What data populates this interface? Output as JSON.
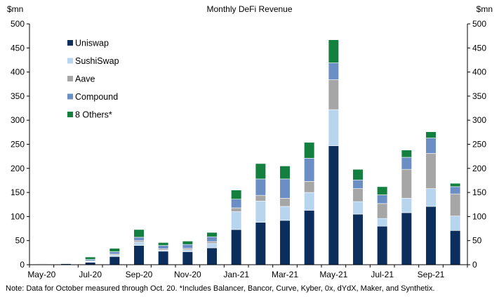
{
  "chart_data": {
    "type": "bar",
    "stacked": true,
    "title": "Monthly DeFi Revenue",
    "ylabel_left": "$mn",
    "ylabel_right": "$mn",
    "ylim": [
      0,
      500
    ],
    "yticks": [
      0,
      50,
      100,
      150,
      200,
      250,
      300,
      350,
      400,
      450,
      500
    ],
    "months": [
      "May-20",
      "Jun-20",
      "Jul-20",
      "Aug-20",
      "Sep-20",
      "Oct-20",
      "Nov-20",
      "Dec-20",
      "Jan-21",
      "Feb-21",
      "Mar-21",
      "Apr-21",
      "May-21",
      "Jun-21",
      "Jul-21",
      "Aug-21",
      "Sep-21",
      "Oct-21"
    ],
    "xtick_labels": [
      "May-20",
      "Jul-20",
      "Sep-20",
      "Nov-20",
      "Jan-21",
      "Mar-21",
      "May-21",
      "Jul-21",
      "Sep-21"
    ],
    "series": [
      {
        "name": "Uniswap",
        "color": "#0c2e5c",
        "values": [
          1,
          2,
          5,
          17,
          40,
          28,
          27,
          35,
          73,
          88,
          92,
          113,
          247,
          105,
          80,
          108,
          121,
          71
        ]
      },
      {
        "name": "SushiSwap",
        "color": "#b7d5ef",
        "values": [
          0,
          0,
          2,
          3,
          7,
          2,
          4,
          9,
          37,
          44,
          29,
          37,
          75,
          26,
          16,
          30,
          37,
          30
        ]
      },
      {
        "name": "Aave",
        "color": "#a6a6a6",
        "values": [
          0,
          0,
          1,
          2,
          3,
          3,
          3,
          4,
          8,
          12,
          17,
          23,
          62,
          27,
          31,
          60,
          73,
          46
        ]
      },
      {
        "name": "Compound",
        "color": "#6b8fc4",
        "values": [
          0,
          1,
          3,
          5,
          7,
          7,
          8,
          10,
          18,
          34,
          40,
          48,
          35,
          18,
          18,
          25,
          32,
          15
        ]
      },
      {
        "name": "8 Others*",
        "color": "#13803f",
        "values": [
          1,
          1,
          5,
          7,
          16,
          6,
          7,
          9,
          19,
          32,
          27,
          33,
          48,
          22,
          17,
          15,
          13,
          7
        ]
      }
    ],
    "legend_position": "top-left",
    "note": "Note: Data for October measured through Oct. 20. *Includes Balancer, Bancor, Curve, Kyber, 0x, dYdX, Maker, and Synthetix."
  }
}
